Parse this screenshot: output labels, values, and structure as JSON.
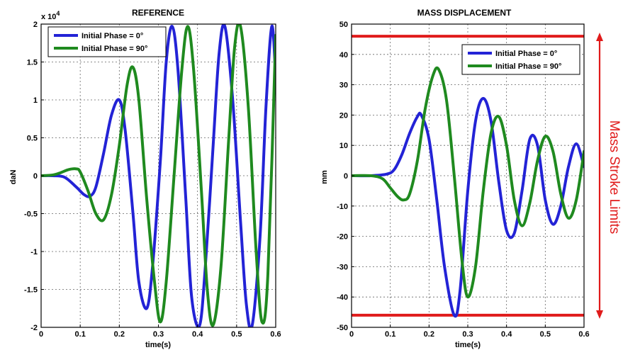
{
  "chart_data": [
    {
      "type": "line",
      "title": "REFERENCE",
      "xlabel": "time(s)",
      "ylabel": "daN",
      "y_exponent_label": "x 10",
      "y_exponent_power": "4",
      "xlim": [
        0,
        0.6
      ],
      "ylim": [
        -2,
        2
      ],
      "xticks": [
        0,
        0.1,
        0.2,
        0.3,
        0.4,
        0.5,
        0.6
      ],
      "xtick_labels": [
        "0",
        "0.1",
        "0.2",
        "0.3",
        "0.4",
        "0.5",
        "0.6"
      ],
      "yticks": [
        -2,
        -1.5,
        -1,
        -0.5,
        0,
        0.5,
        1,
        1.5,
        2
      ],
      "ytick_labels": [
        "-2",
        "-1.5",
        "-1",
        "-0.5",
        "0",
        "0.5",
        "1",
        "1.5",
        "2"
      ],
      "grid": true,
      "legend_position": "top-left",
      "series": [
        {
          "name": "Initial Phase = 0°",
          "color": "#2323d6",
          "x": [
            0,
            0.03,
            0.06,
            0.09,
            0.11,
            0.125,
            0.14,
            0.16,
            0.18,
            0.2,
            0.215,
            0.235,
            0.25,
            0.27,
            0.285,
            0.305,
            0.32,
            0.335,
            0.35,
            0.37,
            0.385,
            0.405,
            0.42,
            0.44,
            0.455,
            0.47,
            0.49,
            0.51,
            0.525,
            0.54,
            0.56,
            0.575,
            0.59,
            0.6
          ],
          "y": [
            0,
            0,
            -0.02,
            -0.15,
            -0.25,
            -0.27,
            -0.15,
            0.3,
            0.8,
            1.0,
            0.6,
            -0.5,
            -1.4,
            -1.75,
            -1.2,
            0.2,
            1.5,
            1.97,
            1.4,
            -0.3,
            -1.6,
            -1.98,
            -1.2,
            0.4,
            1.6,
            1.97,
            1.0,
            -0.6,
            -1.7,
            -1.97,
            -0.8,
            0.9,
            1.97,
            1.3
          ]
        },
        {
          "name": "Initial Phase = 90°",
          "color": "#1f8a1f",
          "x": [
            0,
            0.03,
            0.05,
            0.07,
            0.09,
            0.1,
            0.12,
            0.14,
            0.16,
            0.18,
            0.2,
            0.22,
            0.235,
            0.25,
            0.27,
            0.29,
            0.305,
            0.32,
            0.34,
            0.36,
            0.375,
            0.39,
            0.41,
            0.425,
            0.44,
            0.46,
            0.48,
            0.495,
            0.51,
            0.53,
            0.55,
            0.565,
            0.58,
            0.6
          ],
          "y": [
            0,
            0.01,
            0.04,
            0.08,
            0.09,
            0.05,
            -0.2,
            -0.5,
            -0.58,
            -0.25,
            0.4,
            1.2,
            1.43,
            1.0,
            -0.3,
            -1.4,
            -1.93,
            -1.4,
            0.0,
            1.4,
            1.97,
            1.4,
            -0.2,
            -1.5,
            -1.97,
            -1.2,
            0.5,
            1.7,
            1.97,
            0.9,
            -1.0,
            -1.93,
            -1.3,
            1.85
          ]
        }
      ]
    },
    {
      "type": "line",
      "title": "MASS DISPLACEMENT",
      "xlabel": "time(s)",
      "ylabel": "mm",
      "xlim": [
        0,
        0.6
      ],
      "ylim": [
        -50,
        50
      ],
      "xticks": [
        0,
        0.1,
        0.2,
        0.3,
        0.4,
        0.5,
        0.6
      ],
      "xtick_labels": [
        "0",
        "0.1",
        "0.2",
        "0.3",
        "0.4",
        "0.5",
        "0.6"
      ],
      "yticks": [
        -50,
        -40,
        -30,
        -20,
        -10,
        0,
        10,
        20,
        30,
        40,
        50
      ],
      "ytick_labels": [
        "-50",
        "-40",
        "-30",
        "-20",
        "-10",
        "0",
        "10",
        "20",
        "30",
        "40",
        "50"
      ],
      "grid": true,
      "legend_position": "top-right",
      "limit_lines": [
        46,
        -46
      ],
      "limit_color": "#e01b1b",
      "annotation": "Mass Stroke Limits",
      "series": [
        {
          "name": "Initial Phase = 0°",
          "color": "#2323d6",
          "x": [
            0,
            0.05,
            0.09,
            0.11,
            0.13,
            0.15,
            0.17,
            0.18,
            0.2,
            0.22,
            0.24,
            0.265,
            0.28,
            0.3,
            0.32,
            0.34,
            0.36,
            0.38,
            0.4,
            0.42,
            0.44,
            0.46,
            0.48,
            0.5,
            0.52,
            0.54,
            0.56,
            0.58,
            0.6
          ],
          "y": [
            0,
            0,
            0.5,
            2,
            7,
            14,
            19.5,
            20,
            12,
            -8,
            -30,
            -46,
            -38,
            -5,
            18,
            25.5,
            18,
            -2,
            -18,
            -19,
            -5,
            12,
            10,
            -8,
            -16,
            -10,
            3,
            10.5,
            3
          ]
        },
        {
          "name": "Initial Phase = 90°",
          "color": "#1f8a1f",
          "x": [
            0,
            0.05,
            0.08,
            0.1,
            0.12,
            0.135,
            0.15,
            0.17,
            0.19,
            0.21,
            0.225,
            0.245,
            0.265,
            0.285,
            0.3,
            0.32,
            0.34,
            0.36,
            0.38,
            0.4,
            0.42,
            0.44,
            0.46,
            0.48,
            0.5,
            0.52,
            0.54,
            0.56,
            0.58,
            0.6
          ],
          "y": [
            0,
            0,
            -1,
            -4,
            -7,
            -8,
            -6,
            5,
            22,
            33,
            35,
            25,
            0,
            -28,
            -40,
            -30,
            -5,
            14,
            19.5,
            10,
            -8,
            -16.5,
            -9,
            5,
            13,
            8,
            -6,
            -14,
            -8,
            8
          ]
        }
      ]
    }
  ]
}
